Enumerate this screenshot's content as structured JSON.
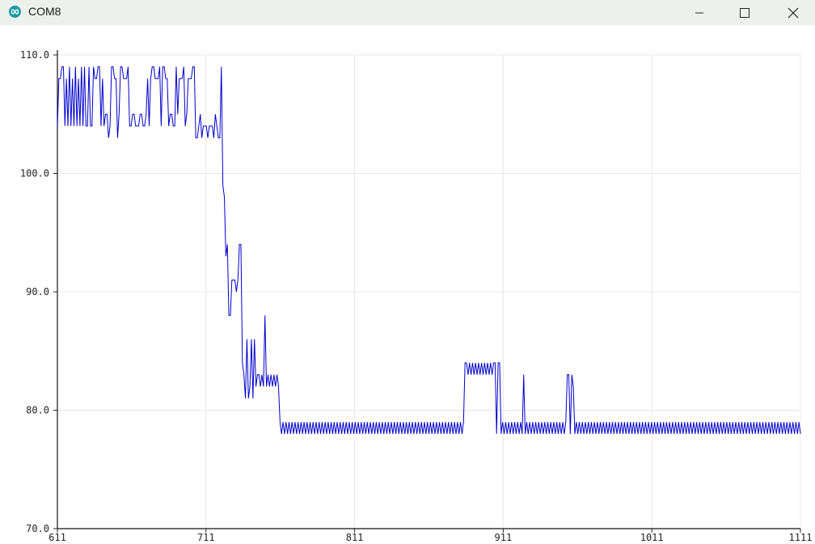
{
  "window": {
    "title": "COM8",
    "icon": "arduino-infinity-icon",
    "controls": [
      "minimize-icon",
      "maximize-icon",
      "close-icon"
    ]
  },
  "chart_data": {
    "type": "line",
    "title": "",
    "xlabel": "",
    "ylabel": "",
    "xlim": [
      611,
      1111
    ],
    "ylim": [
      70,
      110
    ],
    "x_ticks": [
      "611",
      "711",
      "811",
      "911",
      "1011",
      "1111"
    ],
    "y_ticks": [
      "110.0",
      "100.0",
      "90.0",
      "80.0",
      "70.0"
    ],
    "grid": true,
    "line_color": "#0000cc",
    "series": [
      {
        "x_start": 611,
        "x_step": 1,
        "values": [
          104,
          108,
          108,
          109,
          109,
          104,
          108,
          104,
          109,
          104,
          108,
          104,
          109,
          104,
          108,
          104,
          109,
          104,
          109,
          104,
          104,
          109,
          104,
          104,
          109,
          108,
          108,
          109,
          109,
          104,
          108,
          104,
          105,
          105,
          103,
          104,
          109,
          109,
          108,
          108,
          103,
          105,
          109,
          109,
          108,
          108,
          108,
          109,
          104,
          104,
          105,
          105,
          104,
          104,
          104,
          105,
          105,
          104,
          104,
          105,
          108,
          104,
          108,
          109,
          109,
          108,
          108,
          108,
          109,
          104,
          109,
          109,
          108,
          108,
          104,
          105,
          105,
          104,
          104,
          109,
          105,
          108,
          108,
          108,
          109,
          104,
          105,
          108,
          108,
          108,
          109,
          109,
          103,
          103,
          104,
          105,
          103,
          104,
          104,
          104,
          103,
          104,
          104,
          104,
          103,
          105,
          104,
          103,
          103,
          109,
          99,
          98,
          93,
          94,
          88,
          88,
          91,
          91,
          91,
          90,
          91,
          94,
          94,
          84,
          83,
          81,
          86,
          81,
          82,
          86,
          81,
          86,
          82,
          83,
          83,
          82,
          83,
          82,
          88,
          82,
          83,
          82,
          83,
          82,
          83,
          82,
          83,
          82,
          79,
          78,
          79,
          78,
          79,
          78,
          79,
          78,
          79,
          78,
          79,
          78,
          79,
          78,
          79,
          78,
          79,
          78,
          79,
          78,
          79,
          78,
          79,
          78,
          79,
          78,
          79,
          78,
          79,
          78,
          79,
          78,
          79,
          78,
          79,
          78,
          79,
          78,
          79,
          78,
          79,
          78,
          79,
          78,
          79,
          78,
          79,
          78,
          79,
          78,
          79,
          78,
          79,
          78,
          79,
          78,
          79,
          78,
          79,
          78,
          79,
          78,
          79,
          78,
          79,
          78,
          79,
          78,
          79,
          78,
          79,
          78,
          79,
          78,
          79,
          78,
          79,
          78,
          79,
          78,
          79,
          78,
          79,
          78,
          79,
          78,
          79,
          78,
          79,
          78,
          79,
          78,
          79,
          78,
          79,
          78,
          79,
          78,
          79,
          78,
          79,
          78,
          79,
          78,
          79,
          78,
          79,
          78,
          79,
          78,
          79,
          78,
          79,
          78,
          79,
          78,
          79,
          78,
          79,
          78,
          79,
          78,
          79,
          84,
          84,
          83,
          84,
          83,
          84,
          83,
          84,
          83,
          84,
          83,
          84,
          83,
          84,
          83,
          84,
          83,
          84,
          83,
          84,
          84,
          78,
          84,
          84,
          78,
          79,
          78,
          79,
          78,
          79,
          78,
          79,
          78,
          79,
          78,
          79,
          78,
          79,
          78,
          83,
          78,
          79,
          78,
          79,
          78,
          79,
          78,
          79,
          78,
          79,
          78,
          79,
          78,
          79,
          78,
          79,
          78,
          79,
          78,
          79,
          78,
          79,
          78,
          79,
          78,
          79,
          78,
          79,
          83,
          83,
          78,
          83,
          82,
          78,
          79,
          78,
          79,
          78,
          79,
          78,
          79,
          78,
          79,
          78,
          79,
          78,
          79,
          78,
          79,
          78,
          79,
          78,
          79,
          78,
          79,
          78,
          79,
          78,
          79,
          78,
          79,
          78,
          79,
          78,
          79,
          78,
          79,
          78,
          79,
          78,
          79,
          78,
          79,
          78,
          79,
          78,
          79,
          78,
          79,
          78,
          79,
          78,
          79,
          78,
          79,
          78,
          79,
          78,
          79,
          78,
          79,
          78,
          79,
          78,
          79,
          78,
          79,
          78,
          79,
          78,
          79,
          78,
          79,
          78,
          79,
          78,
          79,
          78,
          79,
          78,
          79,
          78,
          79,
          78,
          79,
          78,
          79,
          78,
          79,
          78,
          79,
          78,
          79,
          78,
          79,
          78,
          79,
          78,
          79,
          78,
          79,
          78,
          79,
          78,
          79,
          78,
          79,
          78,
          79,
          78,
          79,
          78,
          79,
          78,
          79,
          78,
          79,
          78,
          79,
          78,
          79,
          78,
          79,
          78,
          79,
          78,
          79,
          78,
          79,
          78,
          79,
          78,
          79,
          78,
          79,
          78,
          79,
          78,
          79,
          78,
          79,
          78,
          79,
          78,
          79,
          78,
          79,
          78,
          79,
          78,
          79,
          78,
          79,
          78
        ]
      }
    ]
  }
}
